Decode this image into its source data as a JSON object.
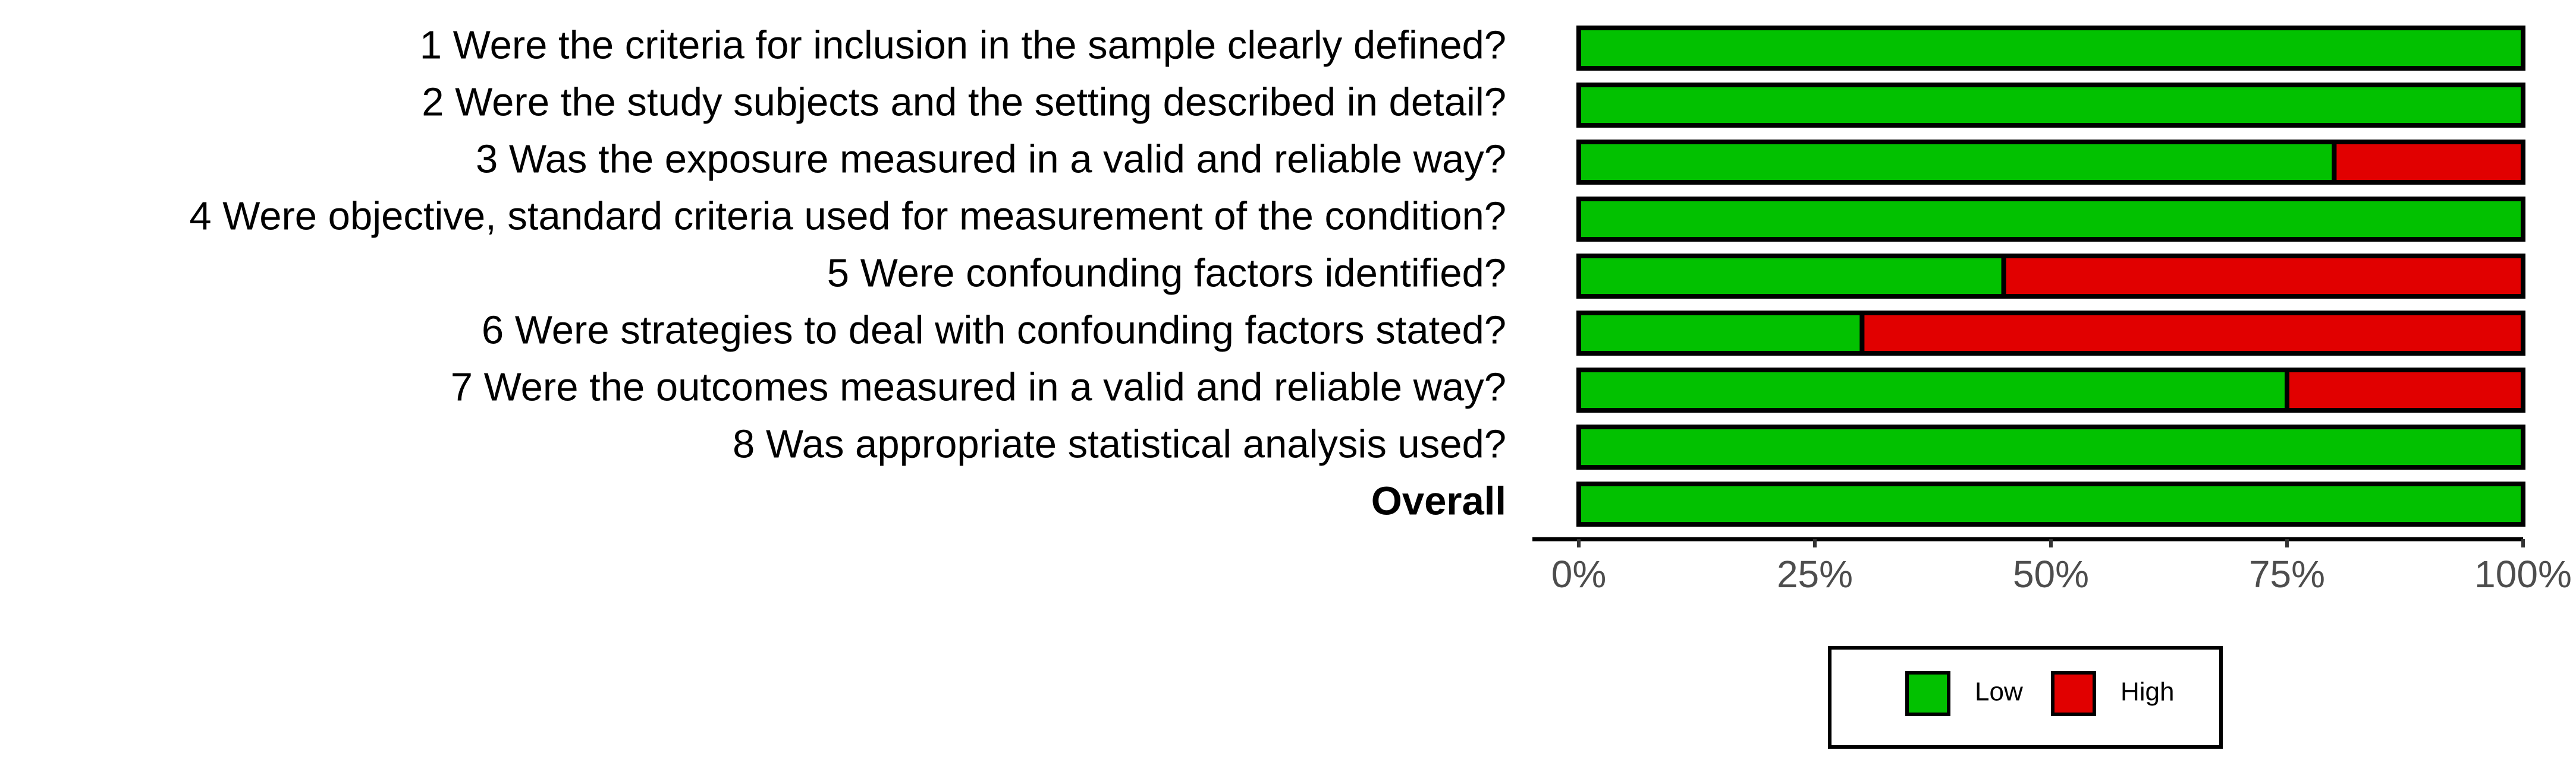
{
  "chart_data": {
    "type": "stacked-barh",
    "categories": [
      "1  Were the criteria for inclusion in the sample clearly defined?",
      "2  Were the study subjects and the setting described in detail?",
      "3  Was the exposure measured in a valid and reliable way?",
      "4  Were objective, standard criteria used for measurement of the condition?",
      "5  Were confounding factors identified?",
      "6  Were strategies to deal with confounding factors stated?",
      "7  Were the outcomes measured in a valid and reliable way?",
      "8  Was appropriate statistical analysis used?",
      "Overall"
    ],
    "bold_categories": [
      "Overall"
    ],
    "series": [
      {
        "name": "Low",
        "color": "#02c100",
        "values": [
          100,
          100,
          80,
          100,
          45,
          30,
          75,
          100,
          100
        ]
      },
      {
        "name": "High",
        "color": "#e10000",
        "values": [
          0,
          0,
          20,
          0,
          55,
          70,
          25,
          0,
          0
        ]
      }
    ],
    "xlim": [
      0,
      100
    ],
    "xticks": [
      {
        "value": 0,
        "label": "0%"
      },
      {
        "value": 25,
        "label": "25%"
      },
      {
        "value": 50,
        "label": "50%"
      },
      {
        "value": 75,
        "label": "75%"
      },
      {
        "value": 100,
        "label": "100%"
      }
    ],
    "legend": "bottom"
  }
}
